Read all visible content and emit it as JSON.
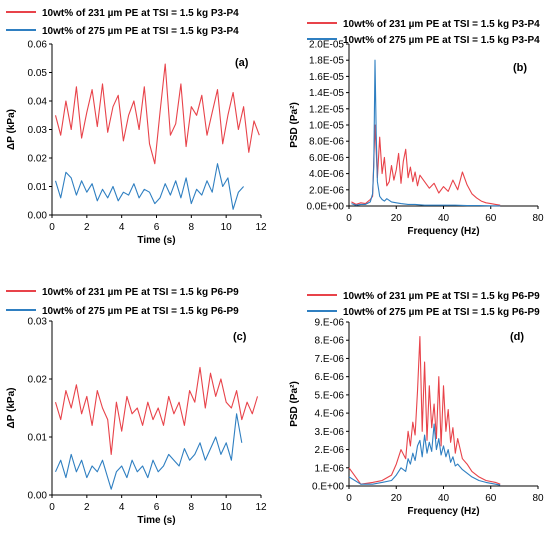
{
  "colors": {
    "red": "#e8434a",
    "blue": "#2f7fc1",
    "axis": "#000000"
  },
  "chart_data": [
    {
      "id": "a",
      "type": "line",
      "panel_label": "(a)",
      "xlabel": "Time (s)",
      "ylabel": "ΔP (kPa)",
      "xlim": [
        0,
        12
      ],
      "ylim": [
        0,
        0.06
      ],
      "xticks": [
        0,
        2,
        4,
        6,
        8,
        10,
        12
      ],
      "yticks": [
        0,
        0.01,
        0.02,
        0.03,
        0.04,
        0.05,
        0.06
      ],
      "ytick_labels": [
        "0.00",
        "0.01",
        "0.02",
        "0.03",
        "0.04",
        "0.05",
        "0.06"
      ],
      "legend_position": "top-left",
      "series": [
        {
          "name": "10wt% of 231 µm PE at TSI = 1.5 kg P3-P4",
          "color": "red",
          "x": [
            0.2,
            0.5,
            0.8,
            1.1,
            1.4,
            1.7,
            2.0,
            2.3,
            2.6,
            2.9,
            3.2,
            3.5,
            3.8,
            4.1,
            4.4,
            4.7,
            5.0,
            5.3,
            5.6,
            5.9,
            6.2,
            6.5,
            6.8,
            7.1,
            7.4,
            7.7,
            8.0,
            8.3,
            8.6,
            8.9,
            9.2,
            9.5,
            9.8,
            10.1,
            10.4,
            10.7,
            11.0,
            11.3,
            11.6,
            11.9
          ],
          "y": [
            0.035,
            0.028,
            0.04,
            0.03,
            0.045,
            0.027,
            0.036,
            0.044,
            0.031,
            0.046,
            0.029,
            0.038,
            0.042,
            0.026,
            0.035,
            0.04,
            0.03,
            0.045,
            0.025,
            0.018,
            0.036,
            0.053,
            0.028,
            0.032,
            0.046,
            0.024,
            0.038,
            0.035,
            0.042,
            0.028,
            0.036,
            0.044,
            0.025,
            0.035,
            0.043,
            0.03,
            0.038,
            0.022,
            0.033,
            0.028
          ]
        },
        {
          "name": "10wt% of 275 µm PE at TSI = 1.5 kg P3-P4",
          "color": "blue",
          "x": [
            0.2,
            0.5,
            0.8,
            1.1,
            1.4,
            1.7,
            2.0,
            2.3,
            2.6,
            2.9,
            3.2,
            3.5,
            3.8,
            4.1,
            4.4,
            4.7,
            5.0,
            5.3,
            5.6,
            5.9,
            6.2,
            6.5,
            6.8,
            7.1,
            7.4,
            7.7,
            8.0,
            8.3,
            8.6,
            8.9,
            9.2,
            9.5,
            9.8,
            10.1,
            10.4,
            10.7,
            11.0
          ],
          "y": [
            0.012,
            0.006,
            0.015,
            0.013,
            0.007,
            0.012,
            0.008,
            0.011,
            0.005,
            0.009,
            0.006,
            0.01,
            0.005,
            0.008,
            0.007,
            0.011,
            0.006,
            0.009,
            0.008,
            0.004,
            0.006,
            0.011,
            0.007,
            0.012,
            0.006,
            0.013,
            0.004,
            0.009,
            0.007,
            0.012,
            0.008,
            0.018,
            0.01,
            0.013,
            0.002,
            0.008,
            0.01
          ]
        }
      ]
    },
    {
      "id": "b",
      "type": "line",
      "panel_label": "(b)",
      "xlabel": "Frequency (Hz)",
      "ylabel": "PSD (Pa²)",
      "xlim": [
        0,
        80
      ],
      "ylim": [
        0,
        2e-05
      ],
      "xticks": [
        0,
        20,
        40,
        60,
        80
      ],
      "yticks": [
        0,
        2e-06,
        4e-06,
        6e-06,
        8e-06,
        1e-05,
        1.2e-05,
        1.4e-05,
        1.6e-05,
        1.8e-05,
        2e-05
      ],
      "ytick_labels": [
        "0.0E+00",
        "2.0E-06",
        "4.0E-06",
        "6.0E-06",
        "8.0E-06",
        "1.0E-05",
        "1.2E-05",
        "1.4E-05",
        "1.6E-05",
        "1.8E-05",
        "2.0E-05"
      ],
      "legend_position": "top",
      "series": [
        {
          "name": "10wt% of 231 µm PE at TSI = 1.5 kg P3-P4",
          "color": "red",
          "x": [
            1,
            3,
            5,
            7,
            9,
            10,
            11,
            12,
            13,
            14,
            15,
            16,
            17,
            18,
            19,
            20,
            21,
            22,
            23,
            24,
            25,
            26,
            27,
            28,
            29,
            30,
            32,
            34,
            36,
            38,
            40,
            42,
            44,
            46,
            48,
            50,
            52,
            54,
            56,
            58,
            60,
            62,
            64
          ],
          "y": [
            5e-07,
            2e-07,
            4e-07,
            3e-07,
            8e-07,
            1.2e-06,
            1e-05,
            3.5e-06,
            8.5e-06,
            4e-06,
            6e-06,
            2.5e-06,
            3e-06,
            5e-06,
            3.2e-06,
            4.5e-06,
            6.5e-06,
            2.8e-06,
            5.5e-06,
            7e-06,
            3.5e-06,
            4.8e-06,
            3e-06,
            4.2e-06,
            2.5e-06,
            3.8e-06,
            3e-06,
            2.2e-06,
            2.8e-06,
            1.6e-06,
            2.4e-06,
            1.8e-06,
            3.2e-06,
            2e-06,
            4.2e-06,
            2.6e-06,
            1.5e-06,
            1e-06,
            6e-07,
            4e-07,
            3e-07,
            2e-07,
            1e-07
          ]
        },
        {
          "name": "10wt% of 275 µm PE at TSI = 1.5 kg P3-P4",
          "color": "blue",
          "x": [
            1,
            3,
            5,
            7,
            9,
            10,
            10.5,
            11,
            11.5,
            12,
            13,
            14,
            15,
            16,
            18,
            20,
            22,
            25,
            28,
            32,
            36,
            40,
            45,
            50,
            55,
            60,
            64
          ],
          "y": [
            3e-07,
            1e-07,
            2e-07,
            2e-07,
            5e-07,
            1.5e-06,
            5e-06,
            1.8e-05,
            9e-06,
            3e-06,
            1.2e-06,
            8e-07,
            6e-07,
            9e-07,
            5e-07,
            4e-07,
            3e-07,
            2e-07,
            2e-07,
            1e-07,
            1e-07,
            1e-07,
            1e-07,
            5e-08,
            5e-08,
            3e-08,
            2e-08
          ]
        }
      ]
    },
    {
      "id": "c",
      "type": "line",
      "panel_label": "(c)",
      "xlabel": "Time (s)",
      "ylabel": "ΔP (kPa)",
      "xlim": [
        0,
        12
      ],
      "ylim": [
        0,
        0.03
      ],
      "xticks": [
        0,
        2,
        4,
        6,
        8,
        10,
        12
      ],
      "yticks": [
        0,
        0.01,
        0.02,
        0.03
      ],
      "ytick_labels": [
        "0.00",
        "0.01",
        "0.02",
        "0.03"
      ],
      "legend_position": "top-left",
      "series": [
        {
          "name": "10wt% of 231 µm PE at TSI = 1.5 kg P6-P9",
          "color": "red",
          "x": [
            0.2,
            0.5,
            0.8,
            1.1,
            1.4,
            1.7,
            2.0,
            2.3,
            2.6,
            2.9,
            3.2,
            3.4,
            3.7,
            4.0,
            4.3,
            4.6,
            4.9,
            5.2,
            5.5,
            5.8,
            6.1,
            6.4,
            6.7,
            7.0,
            7.3,
            7.6,
            7.9,
            8.2,
            8.5,
            8.8,
            9.1,
            9.4,
            9.7,
            10.0,
            10.3,
            10.6,
            10.9,
            11.2,
            11.5,
            11.8
          ],
          "y": [
            0.016,
            0.013,
            0.018,
            0.015,
            0.019,
            0.014,
            0.017,
            0.012,
            0.018,
            0.015,
            0.013,
            0.007,
            0.016,
            0.011,
            0.017,
            0.014,
            0.015,
            0.012,
            0.016,
            0.013,
            0.015,
            0.012,
            0.017,
            0.014,
            0.016,
            0.012,
            0.018,
            0.016,
            0.022,
            0.015,
            0.021,
            0.017,
            0.02,
            0.016,
            0.015,
            0.018,
            0.013,
            0.016,
            0.014,
            0.017
          ]
        },
        {
          "name": "10wt% of 275 µm PE at TSI = 1.5 kg P6-P9",
          "color": "blue",
          "x": [
            0.2,
            0.5,
            0.8,
            1.1,
            1.4,
            1.7,
            2.0,
            2.3,
            2.6,
            2.9,
            3.2,
            3.4,
            3.7,
            4.0,
            4.3,
            4.6,
            4.9,
            5.2,
            5.5,
            5.8,
            6.1,
            6.4,
            6.7,
            7.0,
            7.3,
            7.6,
            7.9,
            8.2,
            8.5,
            8.8,
            9.1,
            9.4,
            9.7,
            10.0,
            10.3,
            10.6,
            10.9
          ],
          "y": [
            0.004,
            0.006,
            0.003,
            0.007,
            0.004,
            0.006,
            0.003,
            0.005,
            0.004,
            0.006,
            0.003,
            0.001,
            0.004,
            0.005,
            0.003,
            0.006,
            0.004,
            0.005,
            0.003,
            0.006,
            0.004,
            0.005,
            0.007,
            0.006,
            0.005,
            0.008,
            0.006,
            0.007,
            0.009,
            0.006,
            0.008,
            0.01,
            0.007,
            0.009,
            0.006,
            0.014,
            0.009
          ]
        }
      ]
    },
    {
      "id": "d",
      "type": "line",
      "panel_label": "(d)",
      "xlabel": "Frequency (Hz)",
      "ylabel": "PSD (Pa²)",
      "xlim": [
        0,
        80
      ],
      "ylim": [
        0,
        9e-06
      ],
      "xticks": [
        0,
        20,
        40,
        60,
        80
      ],
      "yticks": [
        0,
        1e-06,
        2e-06,
        3e-06,
        4e-06,
        5e-06,
        6e-06,
        7e-06,
        8e-06,
        9e-06
      ],
      "ytick_labels": [
        "0.E+00",
        "1.E-06",
        "2.E-06",
        "3.E-06",
        "4.E-06",
        "5.E-06",
        "6.E-06",
        "7.E-06",
        "8.E-06",
        "9.E-06"
      ],
      "legend_position": "top",
      "series": [
        {
          "name": "10wt% of 231 µm PE at TSI = 1.5 kg P6-P9",
          "color": "red",
          "x": [
            0,
            5,
            10,
            14,
            18,
            20,
            22,
            24,
            25,
            26,
            27,
            28,
            29,
            30,
            31,
            32,
            33,
            34,
            35,
            36,
            37,
            38,
            39,
            40,
            41,
            42,
            43,
            44,
            45,
            46,
            48,
            50,
            52,
            55,
            58,
            62,
            64
          ],
          "y": [
            1e-06,
            1e-07,
            2e-07,
            3e-07,
            6e-07,
            1.2e-06,
            2e-06,
            1.5e-06,
            3e-06,
            2.2e-06,
            3.5e-06,
            2.8e-06,
            5.2e-06,
            8.2e-06,
            3e-06,
            6.8e-06,
            2.5e-06,
            5.5e-06,
            3.2e-06,
            4.5e-06,
            2.6e-06,
            6e-06,
            2.2e-06,
            5.5e-06,
            3e-06,
            4.2e-06,
            2.4e-06,
            3.2e-06,
            1.8e-06,
            2.6e-06,
            1.5e-06,
            1.2e-06,
            8e-07,
            5e-07,
            3e-07,
            2e-07,
            1e-07
          ]
        },
        {
          "name": "10wt% of 275 µm PE at TSI = 1.5 kg P6-P9",
          "color": "blue",
          "x": [
            0,
            5,
            10,
            14,
            18,
            20,
            22,
            24,
            25,
            26,
            27,
            28,
            29,
            30,
            31,
            32,
            33,
            34,
            35,
            36,
            37,
            38,
            39,
            40,
            41,
            42,
            43,
            44,
            45,
            46,
            48,
            50,
            52,
            55,
            58,
            62,
            64
          ],
          "y": [
            5e-07,
            1e-07,
            1e-07,
            2e-07,
            3e-07,
            6e-07,
            1e-06,
            8e-07,
            1.5e-06,
            1.2e-06,
            1.8e-06,
            1.4e-06,
            2.2e-06,
            2.5e-06,
            1.6e-06,
            2.8e-06,
            1.8e-06,
            2.4e-06,
            1.9e-06,
            3.4e-06,
            2e-06,
            2.6e-06,
            1.7e-06,
            2.2e-06,
            1.6e-06,
            2e-06,
            1.3e-06,
            1.6e-06,
            1.1e-06,
            1.2e-06,
            9e-07,
            7e-07,
            5e-07,
            3e-07,
            2e-07,
            1e-07,
            5e-08
          ]
        }
      ]
    }
  ]
}
